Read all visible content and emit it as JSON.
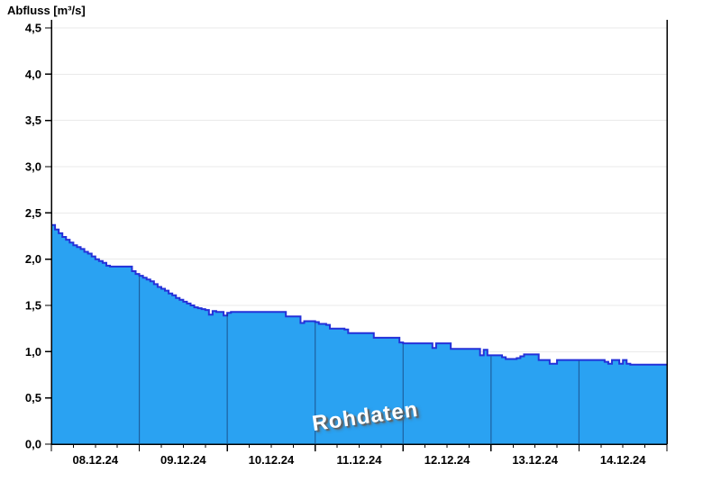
{
  "title": "Abfluss [m³/s]",
  "watermark": "Rohdaten",
  "colors": {
    "area_fill": "#2AA2F2",
    "area_stroke": "#2431D9",
    "grid": "#EAEAEA",
    "axis": "#000000",
    "day_line": "rgba(18,42,92,0.55)",
    "watermark_text": "#FFFFFF",
    "watermark_shadow": "#5F5F5F",
    "label_color": "#000000"
  },
  "chart_data": {
    "type": "area",
    "step": true,
    "title": "Abfluss [m³/s]",
    "ylabel": "Abfluss [m³/s]",
    "xlabel": "",
    "unit": "m³/s",
    "ylim": [
      0,
      4.5
    ],
    "y_ticks": [
      0.0,
      0.5,
      1.0,
      1.5,
      2.0,
      2.5,
      3.0,
      3.5,
      4.0,
      4.5
    ],
    "y_tick_labels": [
      "0,0",
      "0,5",
      "1,0",
      "1,5",
      "2,0",
      "2,5",
      "3,0",
      "3,5",
      "4,0",
      "4,5"
    ],
    "x_days": [
      "08.12.24",
      "09.12.24",
      "10.12.24",
      "11.12.24",
      "12.12.24",
      "13.12.24",
      "14.12.24"
    ],
    "x_start": "08.12.24 00:00",
    "x_interval_hours": 1,
    "x_minor_tick_hours": 6,
    "grid": "horizontal",
    "legend": "none",
    "series": [
      {
        "name": "Rohdaten",
        "values": [
          2.37,
          2.32,
          2.28,
          2.24,
          2.21,
          2.18,
          2.15,
          2.13,
          2.11,
          2.08,
          2.06,
          2.03,
          2.0,
          1.98,
          1.96,
          1.93,
          1.92,
          1.92,
          1.92,
          1.92,
          1.92,
          1.92,
          1.87,
          1.84,
          1.82,
          1.8,
          1.78,
          1.76,
          1.73,
          1.7,
          1.68,
          1.66,
          1.63,
          1.61,
          1.58,
          1.56,
          1.54,
          1.52,
          1.5,
          1.48,
          1.47,
          1.46,
          1.45,
          1.4,
          1.44,
          1.43,
          1.43,
          1.39,
          1.42,
          1.43,
          1.43,
          1.43,
          1.43,
          1.43,
          1.43,
          1.43,
          1.43,
          1.43,
          1.43,
          1.43,
          1.43,
          1.43,
          1.43,
          1.43,
          1.38,
          1.38,
          1.38,
          1.38,
          1.31,
          1.33,
          1.33,
          1.33,
          1.32,
          1.3,
          1.3,
          1.29,
          1.25,
          1.25,
          1.25,
          1.25,
          1.24,
          1.2,
          1.2,
          1.2,
          1.2,
          1.2,
          1.2,
          1.2,
          1.15,
          1.15,
          1.15,
          1.15,
          1.15,
          1.15,
          1.15,
          1.1,
          1.09,
          1.09,
          1.09,
          1.09,
          1.09,
          1.09,
          1.09,
          1.09,
          1.04,
          1.09,
          1.09,
          1.09,
          1.09,
          1.03,
          1.03,
          1.03,
          1.03,
          1.03,
          1.03,
          1.03,
          1.03,
          0.96,
          1.02,
          0.96,
          0.96,
          0.96,
          0.96,
          0.94,
          0.92,
          0.92,
          0.92,
          0.93,
          0.95,
          0.97,
          0.97,
          0.97,
          0.97,
          0.91,
          0.91,
          0.91,
          0.87,
          0.87,
          0.91,
          0.91,
          0.91,
          0.91,
          0.91,
          0.91,
          0.91,
          0.91,
          0.91,
          0.91,
          0.91,
          0.91,
          0.91,
          0.89,
          0.87,
          0.91,
          0.91,
          0.87,
          0.91,
          0.87,
          0.86,
          0.86,
          0.86,
          0.86,
          0.86,
          0.86,
          0.86,
          0.86,
          0.86,
          0.86
        ]
      }
    ]
  }
}
